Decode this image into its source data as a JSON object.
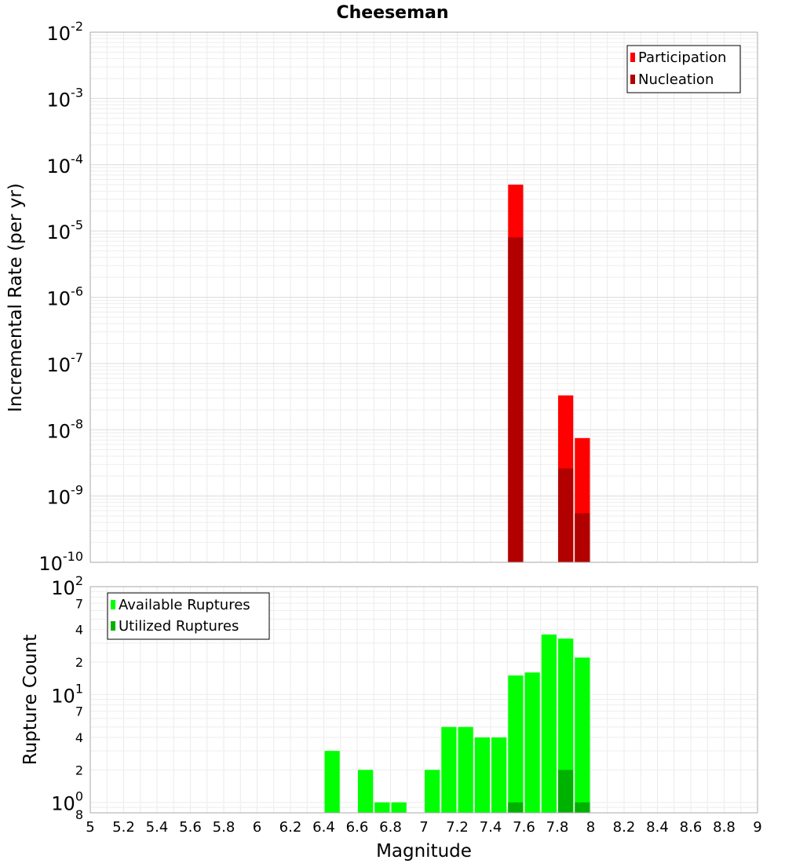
{
  "chart_data": [
    {
      "type": "bar",
      "title": "Cheeseman",
      "ylabel": "Incremental Rate (per yr)",
      "xlabel": "",
      "xlim": [
        5,
        9
      ],
      "yscale": "log",
      "ylim": [
        1e-10,
        0.01
      ],
      "y_ticks": [
        {
          "base": "10",
          "exp": "-10"
        },
        {
          "base": "10",
          "exp": "-9"
        },
        {
          "base": "10",
          "exp": "-8"
        },
        {
          "base": "10",
          "exp": "-7"
        },
        {
          "base": "10",
          "exp": "-6"
        },
        {
          "base": "10",
          "exp": "-5"
        },
        {
          "base": "10",
          "exp": "-4"
        },
        {
          "base": "10",
          "exp": "-3"
        },
        {
          "base": "10",
          "exp": "-2"
        }
      ],
      "bar_width": 0.1,
      "grid": true,
      "legend_position": "top-right",
      "series": [
        {
          "name": "Participation",
          "color": "#ff0000",
          "x": [
            7.55,
            7.85,
            7.95
          ],
          "values": [
            5e-05,
            3.3e-08,
            7.5e-09
          ]
        },
        {
          "name": "Nucleation",
          "color": "#b20000",
          "x": [
            7.55,
            7.85,
            7.95
          ],
          "values": [
            8e-06,
            2.6e-09,
            5.5e-10
          ]
        }
      ]
    },
    {
      "type": "bar",
      "title": "",
      "ylabel": "Rupture Count",
      "xlabel": "Magnitude",
      "xlim": [
        5,
        9
      ],
      "x_ticks": [
        "5",
        "5.2",
        "5.4",
        "5.6",
        "5.8",
        "6",
        "6.2",
        "6.4",
        "6.6",
        "6.8",
        "7",
        "7.2",
        "7.4",
        "7.6",
        "7.8",
        "8",
        "8.2",
        "8.4",
        "8.6",
        "8.8",
        "9"
      ],
      "yscale": "log",
      "ylim": [
        0.8,
        100
      ],
      "y_major_ticks": [
        {
          "value": 1,
          "base": "10",
          "exp": "0"
        },
        {
          "value": 10,
          "base": "10",
          "exp": "1"
        },
        {
          "value": 100,
          "base": "10",
          "exp": "2"
        }
      ],
      "y_minor_ticks": [
        {
          "value": 0.8,
          "label": "8"
        },
        {
          "value": 2,
          "label": "2"
        },
        {
          "value": 4,
          "label": "4"
        },
        {
          "value": 7,
          "label": "7"
        },
        {
          "value": 20,
          "label": "2"
        },
        {
          "value": 40,
          "label": "4"
        },
        {
          "value": 70,
          "label": "7"
        }
      ],
      "bar_width": 0.1,
      "grid": true,
      "legend_position": "top-left",
      "series": [
        {
          "name": "Available Ruptures",
          "color": "#00ff00",
          "x": [
            6.45,
            6.65,
            6.75,
            6.85,
            7.05,
            7.15,
            7.25,
            7.35,
            7.45,
            7.55,
            7.65,
            7.75,
            7.85,
            7.95
          ],
          "values": [
            3,
            2,
            1,
            1,
            2,
            5,
            5,
            4,
            4,
            15,
            16,
            36,
            33,
            22
          ]
        },
        {
          "name": "Utilized Ruptures",
          "color": "#00b200",
          "x": [
            7.55,
            7.85,
            7.95
          ],
          "values": [
            1,
            2,
            1
          ]
        }
      ]
    }
  ]
}
